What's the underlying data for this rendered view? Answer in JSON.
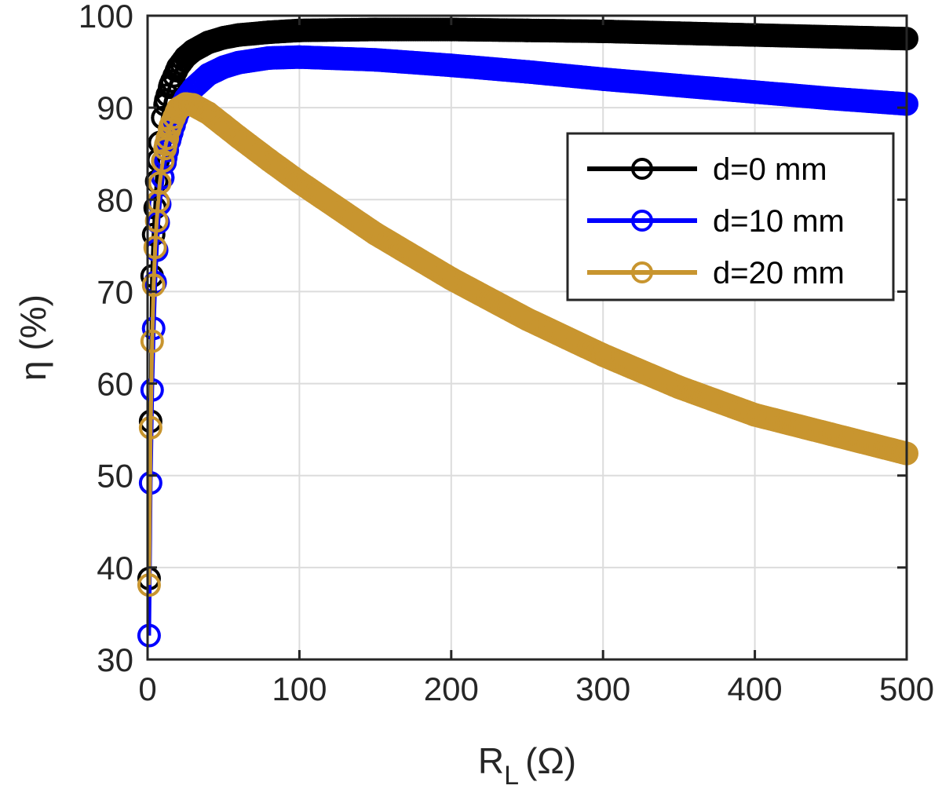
{
  "chart_data": {
    "type": "line",
    "title": "",
    "xlabel": "R",
    "xlabel_subscript": "L",
    "xlabel_unit": "(Ω)",
    "ylabel": "η (%)",
    "xlim": [
      0,
      500
    ],
    "ylim": [
      30,
      100
    ],
    "xticks": [
      0,
      100,
      200,
      300,
      400,
      500
    ],
    "yticks": [
      30,
      40,
      50,
      60,
      70,
      80,
      90,
      100
    ],
    "xtick_labels": [
      "0",
      "100",
      "200",
      "300",
      "400",
      "500"
    ],
    "ytick_labels": [
      "30",
      "40",
      "50",
      "60",
      "70",
      "80",
      "90",
      "100"
    ],
    "grid": true,
    "legend_position": "top-right",
    "marker": "circle",
    "series": [
      {
        "name": "d=0 mm",
        "color": "#000000",
        "x": [
          1,
          2,
          3,
          4,
          5,
          6,
          7,
          8,
          10,
          12,
          15,
          20,
          25,
          30,
          40,
          50,
          60,
          80,
          100,
          150,
          200,
          250,
          300,
          350,
          400,
          450,
          500
        ],
        "y": [
          38.8,
          55.9,
          71.7,
          76.2,
          79.1,
          82.0,
          84.3,
          86.2,
          88.9,
          90.8,
          92.5,
          94.4,
          95.5,
          96.2,
          97.1,
          97.6,
          97.9,
          98.2,
          98.4,
          98.5,
          98.5,
          98.4,
          98.3,
          98.1,
          97.9,
          97.7,
          97.5
        ]
      },
      {
        "name": "d=10 mm",
        "color": "#0000ff",
        "x": [
          1,
          2,
          3,
          4,
          5,
          6,
          7,
          8,
          10,
          12,
          15,
          20,
          25,
          30,
          40,
          50,
          60,
          80,
          100,
          150,
          200,
          250,
          300,
          350,
          400,
          450,
          500
        ],
        "y": [
          32.6,
          49.2,
          59.3,
          66.0,
          71.0,
          74.5,
          77.5,
          79.5,
          82.4,
          84.6,
          86.8,
          89.4,
          91.0,
          92.1,
          93.6,
          94.4,
          94.9,
          95.4,
          95.5,
          95.2,
          94.6,
          93.9,
          93.1,
          92.4,
          91.7,
          91.0,
          90.4
        ]
      },
      {
        "name": "d=20 mm",
        "color": "#c8952f",
        "x": [
          1,
          2,
          3,
          4,
          5,
          6,
          7,
          8,
          10,
          12,
          15,
          20,
          25,
          30,
          40,
          50,
          60,
          80,
          100,
          150,
          200,
          250,
          300,
          350,
          400,
          450,
          500
        ],
        "y": [
          38.1,
          55.2,
          64.6,
          70.7,
          74.8,
          77.7,
          79.8,
          81.8,
          84.2,
          86.0,
          88.0,
          89.9,
          90.4,
          90.3,
          89.4,
          88.1,
          86.8,
          84.3,
          81.9,
          76.3,
          71.4,
          67.0,
          63.1,
          59.6,
          56.6,
          54.5,
          52.4
        ]
      }
    ]
  }
}
